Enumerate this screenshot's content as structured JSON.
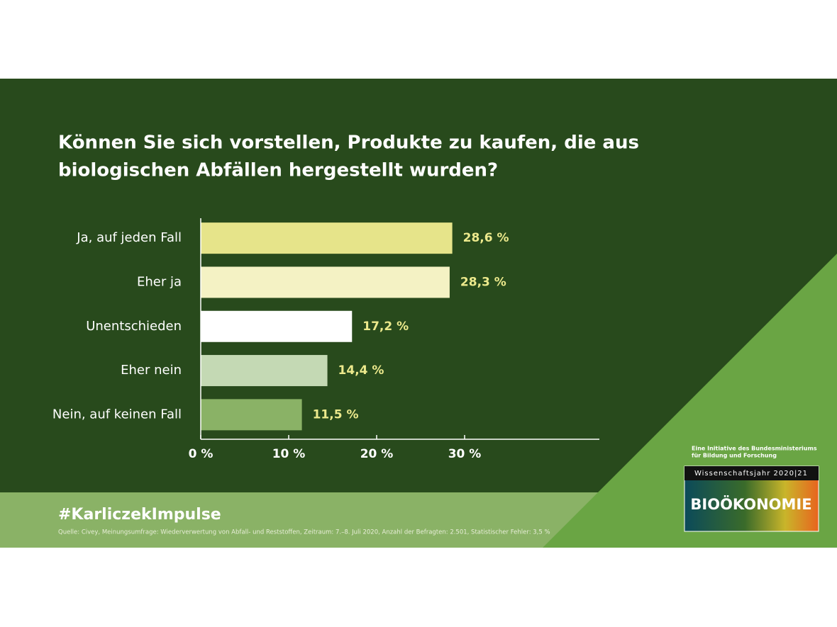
{
  "chart_data": {
    "type": "hbar",
    "title": [
      "Können Sie sich vorstellen, Produkte zu kaufen, die aus",
      "biologischen Abfällen hergestellt wurden?"
    ],
    "categories": [
      "Ja, auf jeden Fall",
      "Eher ja",
      "Unentschieden",
      "Eher nein",
      "Nein, auf keinen Fall"
    ],
    "values": [
      28.6,
      28.3,
      17.2,
      14.4,
      11.5
    ],
    "value_labels": [
      "28,6 %",
      "28,3 %",
      "17,2 %",
      "14,4 %",
      "11,5 %"
    ],
    "colors": [
      "#e6e48a",
      "#f4f2c4",
      "#ffffff",
      "#c4d9b4",
      "#8ab266"
    ],
    "xlim": [
      0,
      45
    ],
    "xticks": [
      {
        "value": 0,
        "label": "0 %"
      },
      {
        "value": 10,
        "label": "10 %"
      },
      {
        "value": 20,
        "label": "20 %"
      },
      {
        "value": 30,
        "label": "30 %"
      }
    ]
  },
  "footer": {
    "hashtag": "#KarliczekImpulse",
    "source": "Quelle: Civey, Meinungsumfrage: Wiederverwertung von Abfall- und Reststoffen, Zeitraum: 7.–8. Juli 2020, Anzahl der Befragten: 2.501, Statistischer Fehler: 3,5 %"
  },
  "branding": {
    "initiative": [
      "Eine Initiative des Bundesministeriums",
      "für Bildung und Forschung"
    ],
    "year": "Wissenschaftsjahr 2020|21",
    "logo": "BIOÖKONOMIE"
  }
}
